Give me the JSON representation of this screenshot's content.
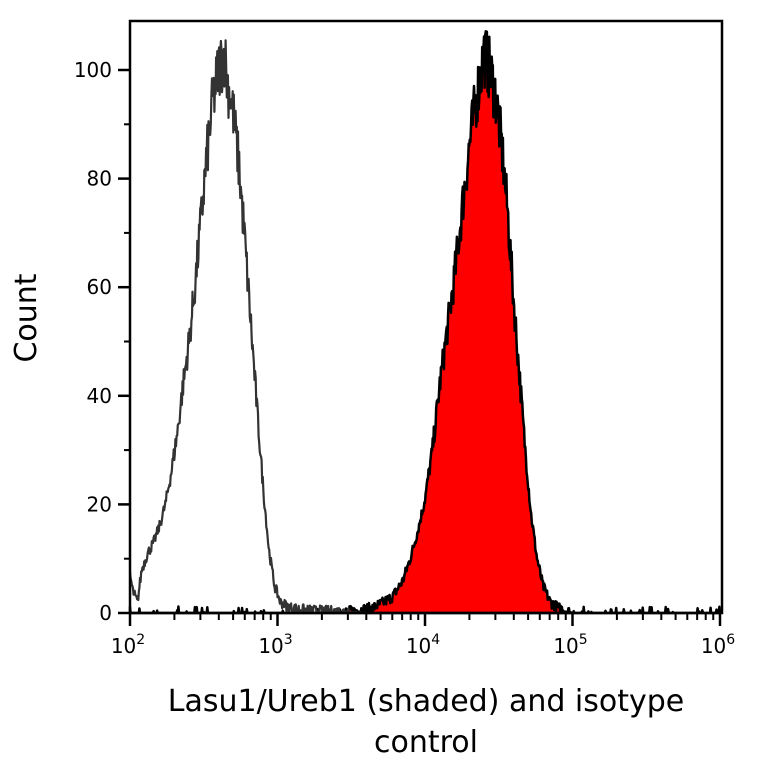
{
  "chart_data": {
    "type": "histogram",
    "subtype": "flow-cytometry overlay",
    "title": "",
    "xlabel": "Lasu1/Ureb1 (shaded) and isotype control",
    "xlabel_lines": [
      "Lasu1/Ureb1 (shaded) and isotype",
      "control"
    ],
    "ylabel": "Count",
    "x_scale": "log",
    "xlim": [
      100,
      1000000
    ],
    "ylim": [
      0,
      108
    ],
    "x_ticks": [
      {
        "base": "10",
        "exp": "2",
        "value": 100
      },
      {
        "base": "10",
        "exp": "3",
        "value": 1000
      },
      {
        "base": "10",
        "exp": "4",
        "value": 10000
      },
      {
        "base": "10",
        "exp": "5",
        "value": 100000
      },
      {
        "base": "10",
        "exp": "6",
        "value": 1000000
      }
    ],
    "y_ticks": [
      0,
      20,
      40,
      60,
      80,
      100
    ],
    "y_minor_ticks": [
      10,
      30,
      50,
      70,
      90
    ],
    "grid": false,
    "legend": "none (described in x-axis label)",
    "series": [
      {
        "name": "Isotype control",
        "style": "unfilled line",
        "line_color": "#333333",
        "fill": "none",
        "points_log10x_count": [
          [
            2.0,
            7
          ],
          [
            2.02,
            4
          ],
          [
            2.05,
            2
          ],
          [
            2.08,
            8
          ],
          [
            2.12,
            11
          ],
          [
            2.16,
            13
          ],
          [
            2.2,
            16
          ],
          [
            2.24,
            20
          ],
          [
            2.28,
            26
          ],
          [
            2.32,
            33
          ],
          [
            2.36,
            42
          ],
          [
            2.4,
            50
          ],
          [
            2.44,
            60
          ],
          [
            2.48,
            72
          ],
          [
            2.52,
            84
          ],
          [
            2.56,
            94
          ],
          [
            2.6,
            100
          ],
          [
            2.64,
            103
          ],
          [
            2.66,
            98
          ],
          [
            2.7,
            92
          ],
          [
            2.74,
            82
          ],
          [
            2.78,
            68
          ],
          [
            2.82,
            53
          ],
          [
            2.86,
            38
          ],
          [
            2.9,
            24
          ],
          [
            2.94,
            12
          ],
          [
            2.98,
            5
          ],
          [
            3.02,
            2
          ],
          [
            3.08,
            1
          ],
          [
            3.2,
            0.5
          ],
          [
            3.4,
            0.3
          ],
          [
            3.6,
            0
          ]
        ]
      },
      {
        "name": "Lasu1/Ureb1",
        "style": "filled",
        "line_color": "#000000",
        "fill": "#ff0000",
        "points_log10x_count": [
          [
            2.0,
            0
          ],
          [
            3.4,
            0
          ],
          [
            3.55,
            0.5
          ],
          [
            3.65,
            1
          ],
          [
            3.72,
            2
          ],
          [
            3.78,
            3
          ],
          [
            3.85,
            6
          ],
          [
            3.9,
            10
          ],
          [
            3.95,
            15
          ],
          [
            4.0,
            21
          ],
          [
            4.05,
            30
          ],
          [
            4.1,
            42
          ],
          [
            4.15,
            52
          ],
          [
            4.2,
            62
          ],
          [
            4.25,
            74
          ],
          [
            4.3,
            86
          ],
          [
            4.35,
            95
          ],
          [
            4.4,
            103
          ],
          [
            4.44,
            100
          ],
          [
            4.48,
            95
          ],
          [
            4.52,
            86
          ],
          [
            4.56,
            74
          ],
          [
            4.6,
            58
          ],
          [
            4.64,
            44
          ],
          [
            4.68,
            30
          ],
          [
            4.72,
            18
          ],
          [
            4.76,
            10
          ],
          [
            4.8,
            5
          ],
          [
            4.85,
            2
          ],
          [
            4.9,
            1
          ],
          [
            5.0,
            0
          ],
          [
            6.0,
            0
          ]
        ]
      }
    ]
  }
}
